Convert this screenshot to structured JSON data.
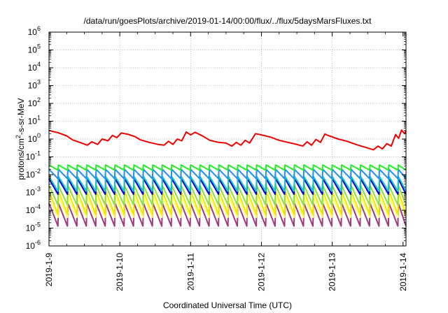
{
  "chart_data": {
    "type": "line",
    "title": "/data/run/goesPlots/archive/2019-01-14/00:00/flux/../flux/5daysMarsFluxes.txt",
    "xlabel": "Coordinated Universal Time (UTC)",
    "ylabel": "protons/cm2-s-sr-MeV",
    "ylabel_parts": {
      "base": "protons/cm",
      "sup": "2",
      "rest": "-s-sr-MeV"
    },
    "y_scale": "log",
    "ylim": [
      1e-06,
      1000000.0
    ],
    "y_ticks": [
      {
        "value": 1e-06,
        "base": "10",
        "exp": "-6"
      },
      {
        "value": 1e-05,
        "base": "10",
        "exp": "-5"
      },
      {
        "value": 0.0001,
        "base": "10",
        "exp": "-4"
      },
      {
        "value": 0.001,
        "base": "10",
        "exp": "-3"
      },
      {
        "value": 0.01,
        "base": "10",
        "exp": "-2"
      },
      {
        "value": 0.1,
        "base": "10",
        "exp": "-1"
      },
      {
        "value": 1.0,
        "base": "10",
        "exp": "0"
      },
      {
        "value": 10.0,
        "base": "10",
        "exp": "1"
      },
      {
        "value": 100.0,
        "base": "10",
        "exp": "2"
      },
      {
        "value": 1000.0,
        "base": "10",
        "exp": "3"
      },
      {
        "value": 10000.0,
        "base": "10",
        "exp": "4"
      },
      {
        "value": 100000.0,
        "base": "10",
        "exp": "5"
      },
      {
        "value": 1000000.0,
        "base": "10",
        "exp": "6"
      }
    ],
    "xlim": [
      "2019-01-09",
      "2019-01-14T01:00"
    ],
    "x_ticks": [
      "2019-1-9",
      "2019-1-10",
      "2019-1-11",
      "2019-1-12",
      "2019-1-13",
      "2019-1-14"
    ],
    "grid": true,
    "series": [
      {
        "color": "#ee0000",
        "points": [
          [
            "2019-01-09T00:00",
            3.0
          ],
          [
            "2019-01-09T03:00",
            2.3
          ],
          [
            "2019-01-09T06:00",
            1.5
          ],
          [
            "2019-01-09T08:00",
            0.9
          ],
          [
            "2019-01-09T11:00",
            0.6
          ],
          [
            "2019-01-09T13:00",
            0.45
          ],
          [
            "2019-01-09T14:30",
            0.7
          ],
          [
            "2019-01-09T16:30",
            0.5
          ],
          [
            "2019-01-09T18:00",
            1.0
          ],
          [
            "2019-01-09T20:00",
            0.8
          ],
          [
            "2019-01-09T21:30",
            1.6
          ],
          [
            "2019-01-09T23:00",
            1.2
          ],
          [
            "2019-01-10T00:30",
            2.2
          ],
          [
            "2019-01-10T03:00",
            1.8
          ],
          [
            "2019-01-10T05:00",
            1.4
          ],
          [
            "2019-01-10T07:00",
            0.9
          ],
          [
            "2019-01-10T10:00",
            0.65
          ],
          [
            "2019-01-10T13:00",
            0.5
          ],
          [
            "2019-01-10T15:00",
            0.45
          ],
          [
            "2019-01-10T16:30",
            0.75
          ],
          [
            "2019-01-10T18:00",
            0.5
          ],
          [
            "2019-01-10T19:30",
            1.0
          ],
          [
            "2019-01-10T21:00",
            0.8
          ],
          [
            "2019-01-10T22:30",
            2.5
          ],
          [
            "2019-01-11T00:00",
            1.7
          ],
          [
            "2019-01-11T01:30",
            2.4
          ],
          [
            "2019-01-11T04:00",
            1.5
          ],
          [
            "2019-01-11T06:30",
            0.85
          ],
          [
            "2019-01-11T09:30",
            0.65
          ],
          [
            "2019-01-11T12:00",
            0.6
          ],
          [
            "2019-01-11T14:00",
            0.4
          ],
          [
            "2019-01-11T15:30",
            0.65
          ],
          [
            "2019-01-11T17:00",
            0.45
          ],
          [
            "2019-01-11T18:30",
            0.85
          ],
          [
            "2019-01-11T20:00",
            0.6
          ],
          [
            "2019-01-11T22:00",
            2.0
          ],
          [
            "2019-01-12T00:00",
            1.7
          ],
          [
            "2019-01-12T03:00",
            1.3
          ],
          [
            "2019-01-12T06:00",
            0.85
          ],
          [
            "2019-01-12T09:00",
            0.65
          ],
          [
            "2019-01-12T12:00",
            0.5
          ],
          [
            "2019-01-12T14:00",
            0.4
          ],
          [
            "2019-01-12T15:30",
            0.7
          ],
          [
            "2019-01-12T17:00",
            0.45
          ],
          [
            "2019-01-12T18:30",
            0.95
          ],
          [
            "2019-01-12T20:00",
            0.65
          ],
          [
            "2019-01-12T21:30",
            1.9
          ],
          [
            "2019-01-12T23:00",
            1.5
          ],
          [
            "2019-01-13T02:00",
            1.0
          ],
          [
            "2019-01-13T05:00",
            0.75
          ],
          [
            "2019-01-13T08:00",
            0.5
          ],
          [
            "2019-01-13T11:00",
            0.35
          ],
          [
            "2019-01-13T14:00",
            0.25
          ],
          [
            "2019-01-13T15:30",
            0.4
          ],
          [
            "2019-01-13T17:00",
            0.28
          ],
          [
            "2019-01-13T18:30",
            0.55
          ],
          [
            "2019-01-13T20:00",
            0.4
          ],
          [
            "2019-01-13T21:30",
            1.8
          ],
          [
            "2019-01-13T22:30",
            1.1
          ],
          [
            "2019-01-13T23:30",
            3.2
          ],
          [
            "2019-01-14T00:30",
            2.0
          ],
          [
            "2019-01-14T01:00",
            3.0
          ]
        ]
      },
      {
        "color": "#22ee22",
        "sawtooth": {
          "period_hours": 3.2,
          "peak": 0.035,
          "trough": 0.018
        }
      },
      {
        "color": "#1f8ff0",
        "sawtooth": {
          "period_hours": 3.2,
          "peak": 0.02,
          "trough": 0.006
        }
      },
      {
        "color": "#18c8c0",
        "sawtooth": {
          "period_hours": 3.2,
          "peak": 0.008,
          "trough": 0.0012
        }
      },
      {
        "color": "#0000cc",
        "sawtooth": {
          "period_hours": 3.2,
          "peak": 0.006,
          "trough": 0.0008
        }
      },
      {
        "color": "#8ae040",
        "sawtooth": {
          "period_hours": 3.2,
          "peak": 0.0025,
          "trough": 0.0002
        }
      },
      {
        "color": "#f0e800",
        "sawtooth": {
          "period_hours": 3.2,
          "peak": 0.0012,
          "trough": 6e-05
        }
      },
      {
        "color": "#ffff70",
        "sawtooth": {
          "period_hours": 3.2,
          "peak": 0.0006,
          "trough": 4e-05
        }
      },
      {
        "color": "#a03a7a",
        "sawtooth": {
          "period_hours": 3.2,
          "peak": 0.00025,
          "trough": 1.3e-05
        }
      }
    ]
  }
}
